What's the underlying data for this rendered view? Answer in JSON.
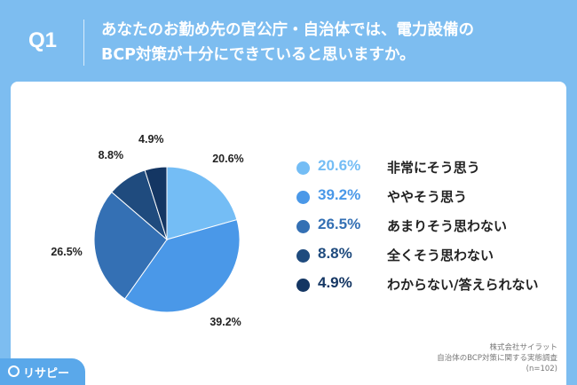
{
  "question": {
    "label": "Q1",
    "line1": "あなたのお勤め先の官公庁・自治体では、電力設備の",
    "line2": "BCP対策が十分にできていると思いますか。"
  },
  "chart_data": {
    "type": "pie",
    "title": "",
    "categories": [
      "非常にそう思う",
      "ややそう思う",
      "あまりそう思わない",
      "全くそう思わない",
      "わからない/答えられない"
    ],
    "values": [
      20.6,
      39.2,
      26.5,
      8.8,
      4.9
    ],
    "value_labels": [
      "20.6%",
      "39.2%",
      "26.5%",
      "8.8%",
      "4.9%"
    ],
    "colors": [
      "#74bdf5",
      "#4a98e8",
      "#3470b4",
      "#1f4b7e",
      "#143663"
    ],
    "legend_placement": "right"
  },
  "source": {
    "line1": "株式会社サイラット",
    "line2": "自治体のBCP対策に関する実態調査",
    "line3": "(n=102)"
  },
  "logo": {
    "name": "リサピー",
    "icon": "speech-bubble-icon"
  }
}
